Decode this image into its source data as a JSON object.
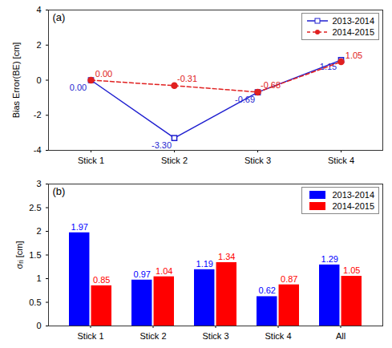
{
  "chart_data": [
    {
      "type": "line",
      "title": "(a)",
      "y_label": "Bias Error(BE) [cm]",
      "categories": [
        "Stick 1",
        "Stick 2",
        "Stick 3",
        "Stick 4"
      ],
      "series": [
        {
          "name": "2013-2014",
          "color": "#1f1fd0",
          "marker": "square",
          "line_style": "solid",
          "values": [
            0,
            -3.3,
            -0.69,
            1.15
          ],
          "value_labels": [
            "0.00",
            "-3.30",
            "-0.69",
            "1.15"
          ]
        },
        {
          "name": "2014-2015",
          "color": "#e02020",
          "marker": "circle",
          "line_style": "dashed",
          "values": [
            0,
            -0.31,
            -0.68,
            1.05
          ],
          "value_labels": [
            "0.00",
            "-0.31",
            "-0.68",
            "1.05"
          ]
        }
      ],
      "ylim": [
        -4,
        4
      ],
      "yticks": [
        -4,
        -2,
        0,
        2,
        4
      ],
      "legend": "top-right",
      "data_labels": true
    },
    {
      "type": "bar",
      "title": "(b)",
      "y_label": "σᵣᵢ [cm]",
      "categories": [
        "Stick 1",
        "Stick 2",
        "Stick 3",
        "Stick 4",
        "All"
      ],
      "series": [
        {
          "name": "2013-2014",
          "color": "#0000ff",
          "values": [
            1.97,
            0.97,
            1.19,
            0.62,
            1.29
          ]
        },
        {
          "name": "2014-2015",
          "color": "#ff0000",
          "values": [
            0.85,
            1.04,
            1.34,
            0.87,
            1.05
          ]
        }
      ],
      "ylim": [
        0,
        3
      ],
      "yticks": [
        0,
        0.5,
        1,
        1.5,
        2,
        2.5,
        3
      ],
      "legend": "top-right",
      "data_labels": true
    }
  ]
}
